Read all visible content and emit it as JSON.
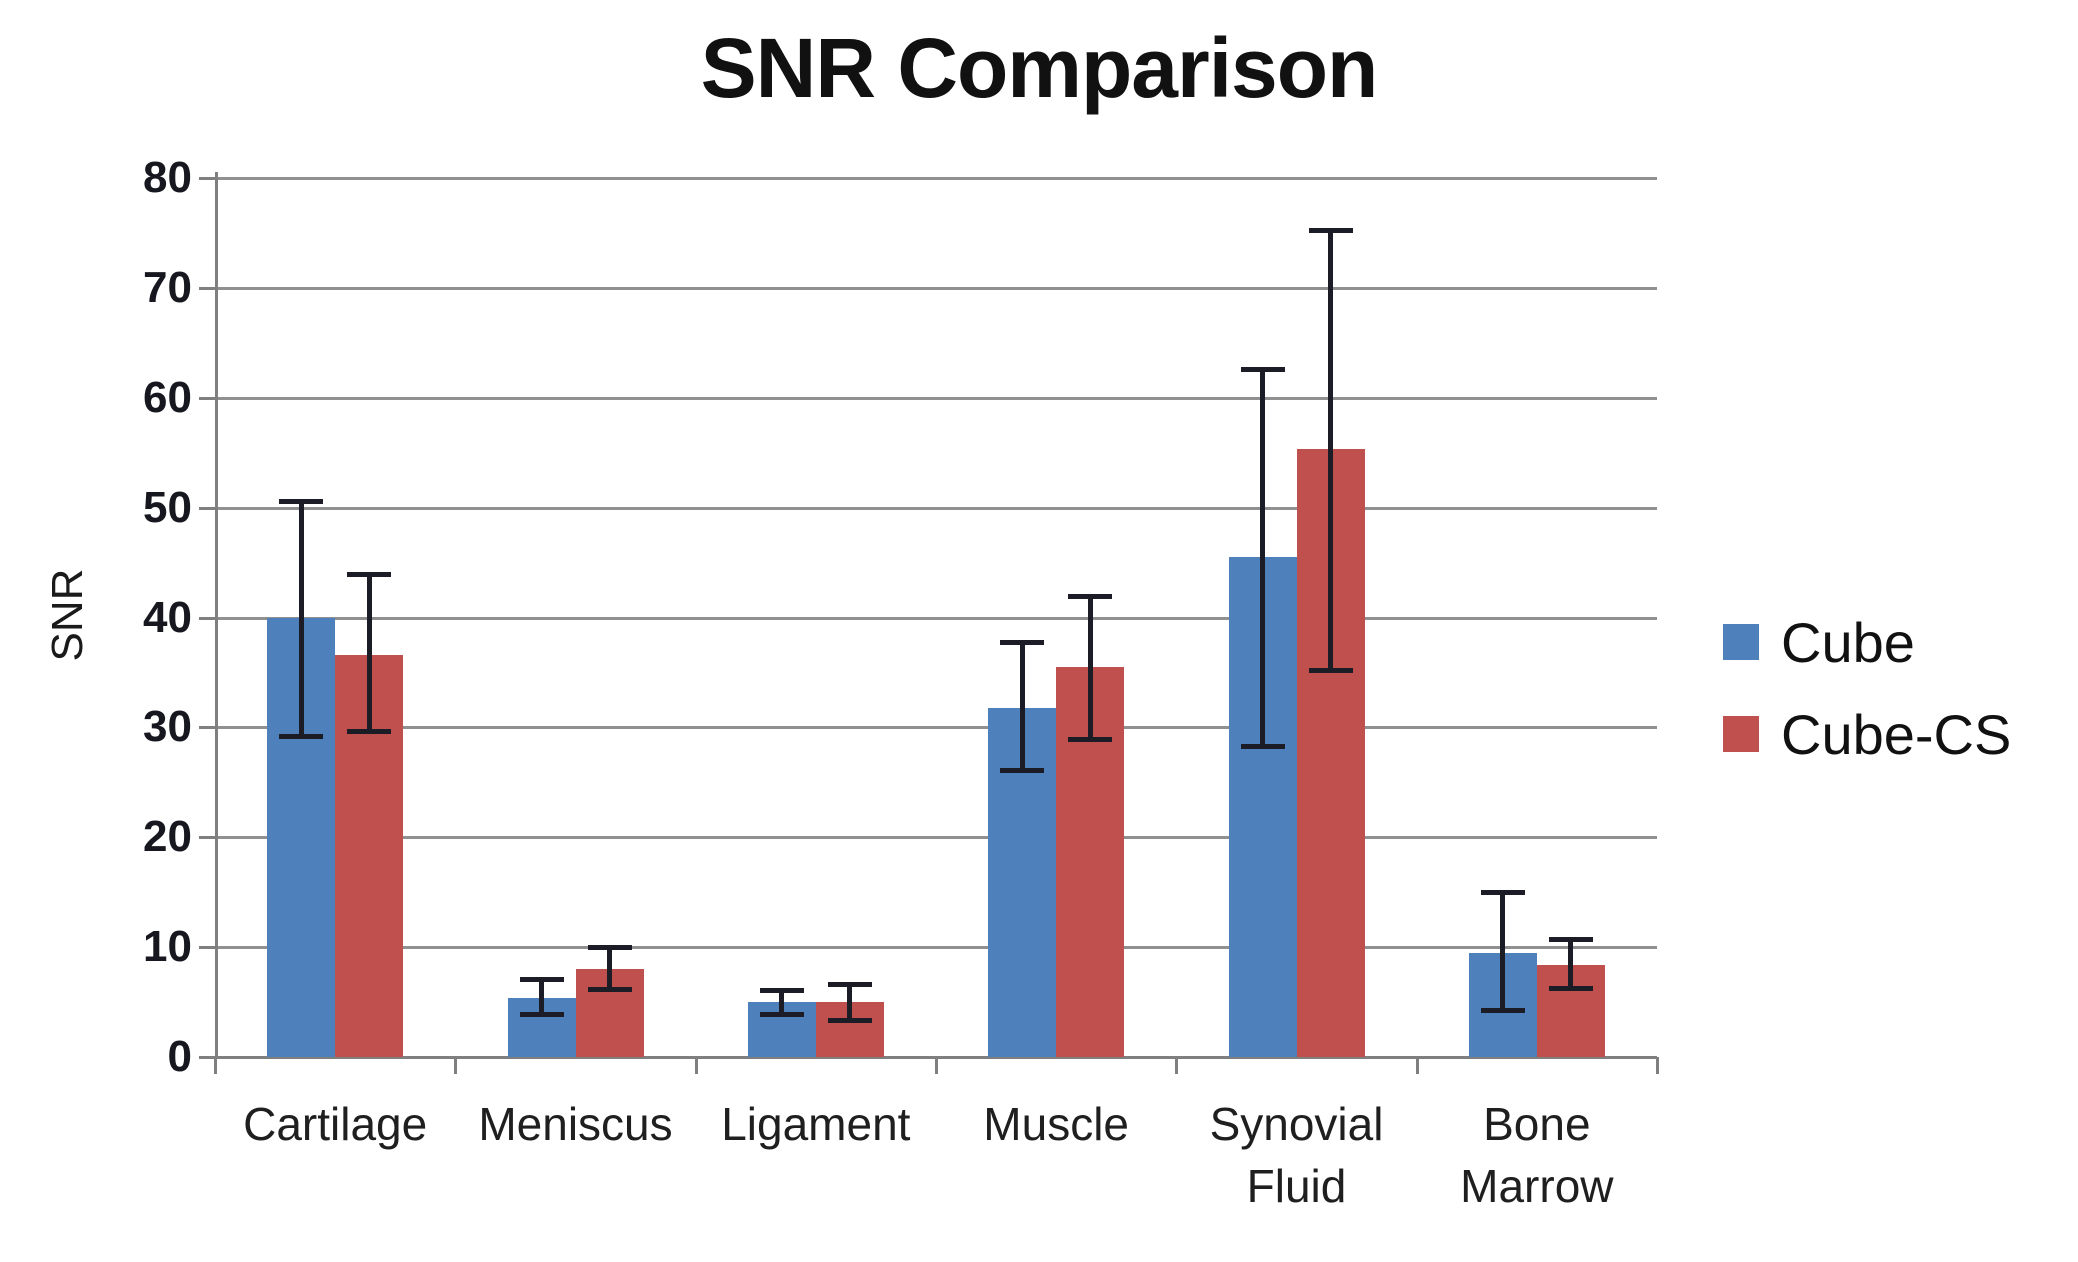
{
  "page": {
    "title": "SNR Comparison"
  },
  "chart_data": {
    "type": "bar",
    "title": "SNR Comparison",
    "xlabel": "",
    "ylabel": "SNR",
    "ylim": [
      0,
      80
    ],
    "y_ticks": [
      0,
      10,
      20,
      30,
      40,
      50,
      60,
      70,
      80
    ],
    "grid": true,
    "legend_position": "right",
    "categories": [
      "Cartilage",
      "Meniscus",
      "Ligament",
      "Muscle",
      "Synovial Fluid",
      "Bone Marrow"
    ],
    "category_label_lines": [
      [
        "Cartilage"
      ],
      [
        "Meniscus"
      ],
      [
        "Ligament"
      ],
      [
        "Muscle"
      ],
      [
        "Synovial",
        "Fluid"
      ],
      [
        "Bone",
        "Marrow"
      ]
    ],
    "series": [
      {
        "name": "Cube",
        "color": "#4E80BC",
        "values": [
          40.0,
          5.4,
          5.0,
          31.8,
          45.5,
          9.5
        ],
        "error_low": [
          29.2,
          3.9,
          3.9,
          26.1,
          28.3,
          4.3
        ],
        "error_high": [
          50.6,
          7.1,
          6.1,
          37.8,
          62.6,
          15.0
        ]
      },
      {
        "name": "Cube-CS",
        "color": "#C0504D",
        "values": [
          36.6,
          8.0,
          5.0,
          35.5,
          55.3,
          8.4
        ],
        "error_low": [
          29.7,
          6.2,
          3.4,
          28.9,
          35.2,
          6.3
        ],
        "error_high": [
          44.0,
          10.0,
          6.6,
          42.0,
          75.3,
          10.7
        ]
      }
    ],
    "error_bar_color": "#1c1c26",
    "gridline_color": "#909090",
    "axis_color": "#7f7f7f",
    "text_color": "#1a1a1a",
    "background_color": "#ffffff"
  }
}
